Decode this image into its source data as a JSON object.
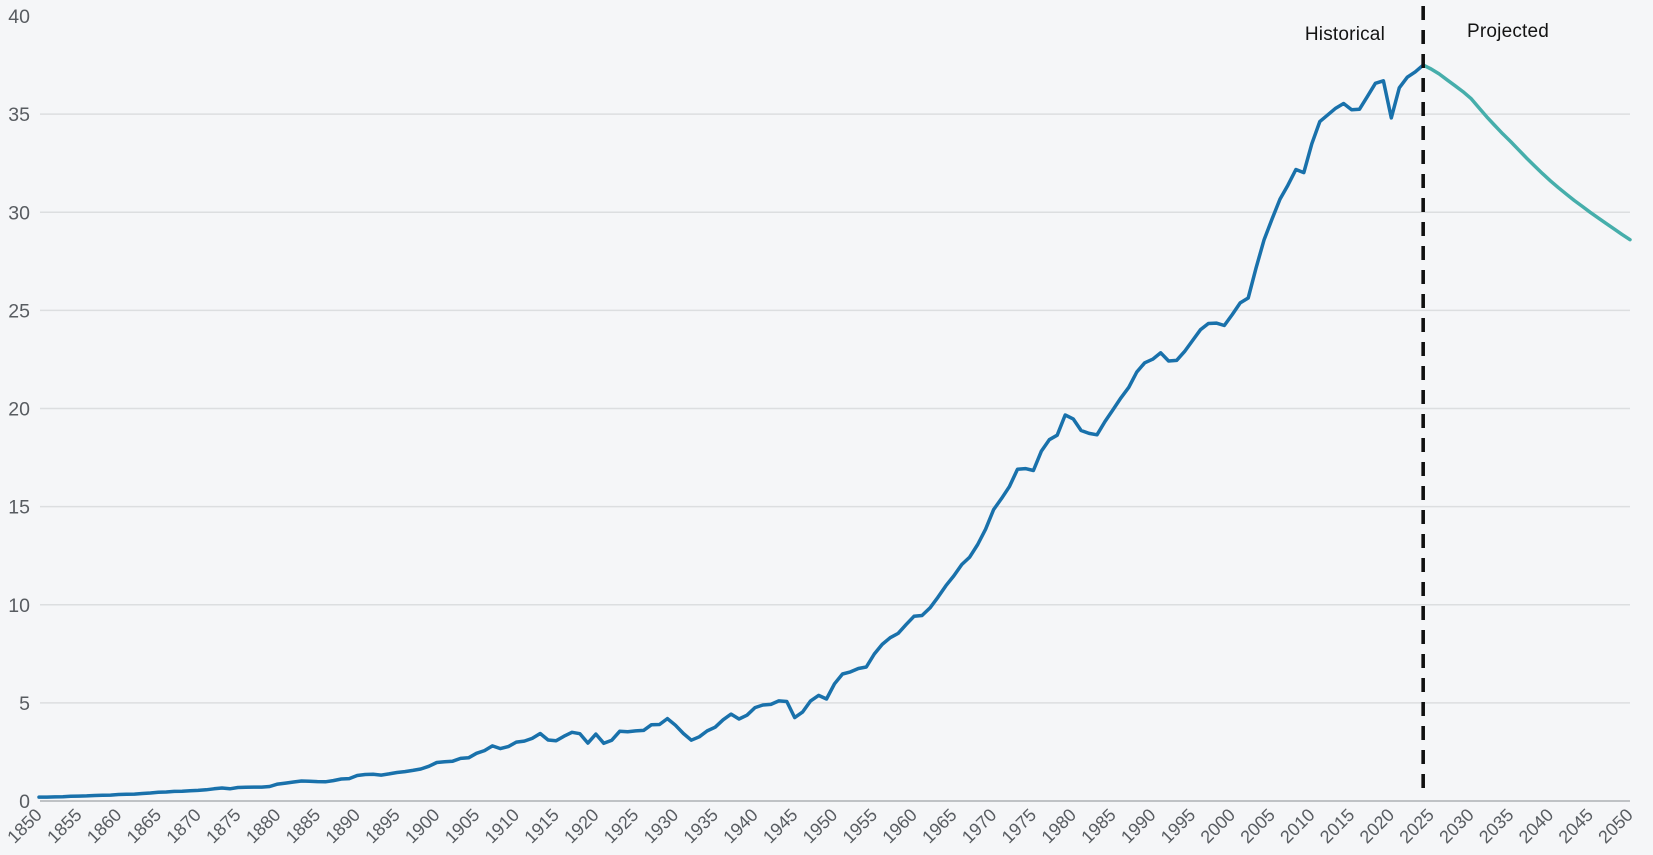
{
  "page": {
    "background": "#f5f6f8",
    "grid_color": "#dcdee0",
    "axis_line_color": "#bfc2c5",
    "tick_label_color": "#585c61"
  },
  "chart_data": {
    "type": "line",
    "title": "",
    "xlabel": "",
    "ylabel": "",
    "xlim": [
      1850,
      2050
    ],
    "ylim": [
      0,
      40
    ],
    "grid": "horizontal",
    "legend_position": "none",
    "x_ticks": [
      1850,
      1855,
      1860,
      1865,
      1870,
      1875,
      1880,
      1885,
      1890,
      1895,
      1900,
      1905,
      1910,
      1915,
      1920,
      1925,
      1930,
      1935,
      1940,
      1945,
      1950,
      1955,
      1960,
      1965,
      1970,
      1975,
      1980,
      1985,
      1990,
      1995,
      2000,
      2005,
      2010,
      2015,
      2020,
      2025,
      2030,
      2035,
      2040,
      2045,
      2050
    ],
    "y_ticks": [
      0,
      5,
      10,
      15,
      20,
      25,
      30,
      35,
      40
    ],
    "divider": {
      "year": 2024,
      "style": "dashed",
      "color": "#101010"
    },
    "annotations": [
      {
        "text": "Historical",
        "side": "left_of_divider"
      },
      {
        "text": "Projected",
        "side": "right_of_divider"
      }
    ],
    "series": [
      {
        "name": "Historical",
        "color": "#1971ab",
        "x_start": 1850,
        "x_end": 2024,
        "values": [
          0.2,
          0.2,
          0.21,
          0.22,
          0.24,
          0.25,
          0.26,
          0.28,
          0.29,
          0.3,
          0.33,
          0.34,
          0.35,
          0.38,
          0.41,
          0.45,
          0.46,
          0.49,
          0.5,
          0.52,
          0.54,
          0.57,
          0.62,
          0.66,
          0.62,
          0.69,
          0.7,
          0.71,
          0.71,
          0.74,
          0.86,
          0.91,
          0.97,
          1.02,
          1.01,
          0.99,
          0.98,
          1.04,
          1.12,
          1.14,
          1.3,
          1.35,
          1.36,
          1.32,
          1.38,
          1.45,
          1.5,
          1.56,
          1.63,
          1.77,
          1.96,
          2.0,
          2.03,
          2.17,
          2.2,
          2.43,
          2.57,
          2.81,
          2.67,
          2.77,
          3.0,
          3.05,
          3.19,
          3.44,
          3.11,
          3.07,
          3.3,
          3.5,
          3.43,
          2.95,
          3.41,
          2.94,
          3.1,
          3.55,
          3.53,
          3.57,
          3.6,
          3.89,
          3.9,
          4.2,
          3.86,
          3.44,
          3.1,
          3.27,
          3.57,
          3.76,
          4.14,
          4.43,
          4.18,
          4.37,
          4.76,
          4.89,
          4.92,
          5.1,
          5.07,
          4.25,
          4.54,
          5.1,
          5.38,
          5.2,
          5.97,
          6.47,
          6.58,
          6.75,
          6.83,
          7.49,
          7.98,
          8.32,
          8.54,
          8.99,
          9.41,
          9.45,
          9.84,
          10.38,
          10.97,
          11.47,
          12.05,
          12.43,
          13.07,
          13.85,
          14.85,
          15.42,
          16.03,
          16.9,
          16.94,
          16.84,
          17.82,
          18.41,
          18.64,
          19.67,
          19.47,
          18.88,
          18.73,
          18.66,
          19.34,
          19.93,
          20.54,
          21.08,
          21.86,
          22.33,
          22.51,
          22.84,
          22.42,
          22.45,
          22.9,
          23.46,
          24.01,
          24.33,
          24.35,
          24.23,
          24.79,
          25.38,
          25.63,
          27.17,
          28.6,
          29.65,
          30.67,
          31.38,
          32.18,
          32.02,
          33.49,
          34.62,
          34.96,
          35.3,
          35.54,
          35.22,
          35.25,
          35.91,
          36.57,
          36.7,
          34.81,
          36.34,
          36.88,
          37.15,
          37.5
        ]
      },
      {
        "name": "Projected",
        "color": "#46aeab",
        "x_start": 2024,
        "x_end": 2050,
        "values": [
          37.5,
          37.3,
          37.05,
          36.75,
          36.45,
          36.15,
          35.8,
          35.32,
          34.86,
          34.42,
          34.0,
          33.6,
          33.18,
          32.76,
          32.36,
          31.97,
          31.6,
          31.25,
          30.92,
          30.6,
          30.3,
          30.0,
          29.71,
          29.43,
          29.15,
          28.87,
          28.6
        ]
      }
    ]
  }
}
